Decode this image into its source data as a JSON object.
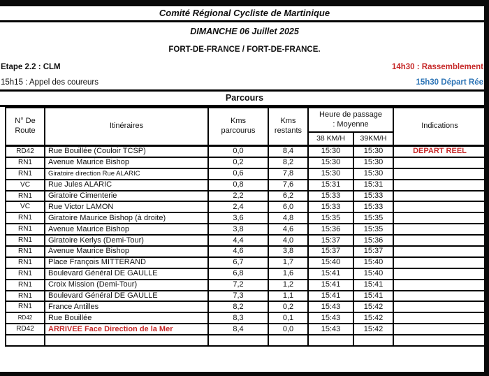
{
  "colors": {
    "red": "#c62828",
    "blue": "#2e75b6"
  },
  "header": {
    "org_title": "Comité Régional Cycliste de Martinique",
    "date_line": "DIMANCHE 06 Juillet 2025",
    "route_line": "FORT-DE-FRANCE / FORT-DE-FRANCE.",
    "stage_label": "Etape 2.2 : CLM",
    "assembly_time": "14h30 : Rassemblement",
    "call_time": "15h15 : Appel des coureurs",
    "start_time": "15h30 Départ Rée"
  },
  "section_title": "Parcours",
  "table": {
    "headers": {
      "route": "N° De\nRoute",
      "itinerary": "Itinéraires",
      "km_done": "Kms\nparcourus",
      "km_left": "Kms\nrestants",
      "passage": "Heure de passage\n: Moyenne",
      "speed38": "38 KM/H",
      "speed39": "39KM/H",
      "indications": "Indications"
    },
    "rows": [
      {
        "route": "RD42",
        "itinerary": "Rue Bouillée (Couloir TCSP)",
        "km_done": "0,0",
        "km_left": "8,4",
        "t38": "15:30",
        "t39": "15:30",
        "indication": "DEPART REEL",
        "indication_red": true
      },
      {
        "route": "RN1",
        "itinerary": "Avenue Maurice Bishop",
        "km_done": "0,2",
        "km_left": "8,2",
        "t38": "15:30",
        "t39": "15:30",
        "indication": ""
      },
      {
        "route": "RN1",
        "itinerary": "Giratoire direction Rue ALARIC",
        "itinerary_small": true,
        "km_done": "0,6",
        "km_left": "7,8",
        "t38": "15:30",
        "t39": "15:30",
        "indication": ""
      },
      {
        "route": "VC",
        "itinerary": "Rue Jules ALARIC",
        "km_done": "0,8",
        "km_left": "7,6",
        "t38": "15:31",
        "t39": "15:31",
        "indication": ""
      },
      {
        "route": "RN1",
        "itinerary": "Giratoire Cimenterie",
        "km_done": "2,2",
        "km_left": "6,2",
        "t38": "15:33",
        "t39": "15:33",
        "indication": ""
      },
      {
        "route": "VC",
        "itinerary": "Rue Victor LAMON",
        "km_done": "2,4",
        "km_left": "6,0",
        "t38": "15:33",
        "t39": "15:33",
        "indication": ""
      },
      {
        "route": "RN1",
        "itinerary": "Giratoire Maurice Bishop (à droite)",
        "km_done": "3,6",
        "km_left": "4,8",
        "t38": "15:35",
        "t39": "15:35",
        "indication": ""
      },
      {
        "route": "RN1",
        "itinerary": "Avenue Maurice Bishop",
        "km_done": "3,8",
        "km_left": "4,6",
        "t38": "15:36",
        "t39": "15:35",
        "indication": ""
      },
      {
        "route": "RN1",
        "itinerary": "Giratoire Kerlys (Demi-Tour)",
        "km_done": "4,4",
        "km_left": "4,0",
        "t38": "15:37",
        "t39": "15:36",
        "indication": ""
      },
      {
        "route": "RN1",
        "itinerary": "Avenue Maurice Bishop",
        "km_done": "4,6",
        "km_left": "3,8",
        "t38": "15:37",
        "t39": "15:37",
        "indication": ""
      },
      {
        "route": "RN1",
        "itinerary": "Place François MITTERAND",
        "km_done": "6,7",
        "km_left": "1,7",
        "t38": "15:40",
        "t39": "15:40",
        "indication": ""
      },
      {
        "route": "RN1",
        "itinerary": "Boulevard Général DE GAULLE",
        "km_done": "6,8",
        "km_left": "1,6",
        "t38": "15:41",
        "t39": "15:40",
        "indication": ""
      },
      {
        "route": "RN1",
        "itinerary": "Croix Mission (Demi-Tour)",
        "km_done": "7,2",
        "km_left": "1,2",
        "t38": "15:41",
        "t39": "15:41",
        "indication": ""
      },
      {
        "route": "RN1",
        "itinerary": "Boulevard Général DE GAULLE",
        "km_done": "7,3",
        "km_left": "1,1",
        "t38": "15:41",
        "t39": "15:41",
        "indication": ""
      },
      {
        "route": "RN1",
        "itinerary": "France Antilles",
        "km_done": "8,2",
        "km_left": "0,2",
        "t38": "15:43",
        "t39": "15:42",
        "indication": ""
      },
      {
        "route": "RD42",
        "route_small": true,
        "itinerary": "Rue Bouillée",
        "km_done": "8,3",
        "km_left": "0,1",
        "t38": "15:43",
        "t39": "15:42",
        "indication": ""
      },
      {
        "route": "RD42",
        "itinerary": "ARRIVEE Face Direction de la Mer",
        "itinerary_red": true,
        "km_done": "8,4",
        "km_left": "0,0",
        "t38": "15:43",
        "t39": "15:42",
        "indication": ""
      },
      {
        "route": "",
        "itinerary": "",
        "km_done": "",
        "km_left": "",
        "t38": "",
        "t39": "",
        "indication": ""
      }
    ]
  }
}
